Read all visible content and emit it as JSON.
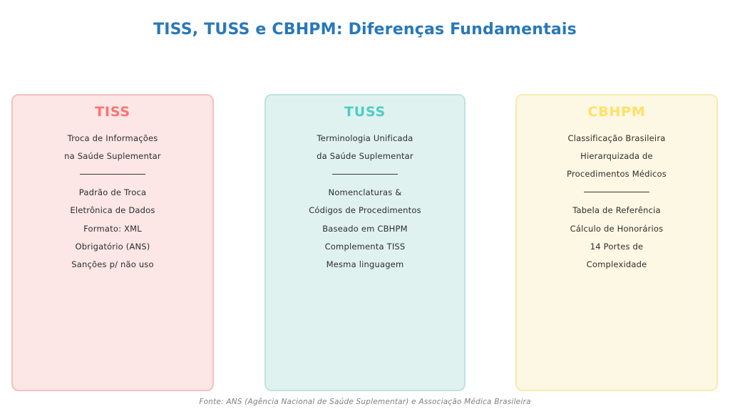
{
  "title": "TISS, TUSS e CBHPM: Diferenças Fundamentais",
  "footer": "Fonte: ANS (Agência Nacional de Saúde Suplementar) e Associação Médica Brasileira",
  "colors": {
    "title_text": "#2878b8",
    "body_text": "#2d2d2d",
    "footer_text": "#7f7f7f",
    "page_background": "#ffffff",
    "divider_line": "#3a3a3a"
  },
  "cards": [
    {
      "id": "tiss",
      "title": "TISS",
      "accent_color": "#fa7470",
      "background_color": "#fce6e6",
      "border_color": "#f5bfbf",
      "description_lines": [
        "Troca de Informações",
        "na Saúde Suplementar"
      ],
      "feature_lines": [
        "Padrão de Troca",
        "Eletrônica de Dados",
        "Formato: XML",
        "Obrigatório (ANS)",
        "Sanções p/ não uso"
      ]
    },
    {
      "id": "tuss",
      "title": "TUSS",
      "accent_color": "#4ecdc4",
      "background_color": "#e0f2f0",
      "border_color": "#bde4e0",
      "description_lines": [
        "Terminologia Unificada",
        "da Saúde Suplementar"
      ],
      "feature_lines": [
        "Nomenclaturas &",
        "Códigos de Procedimentos",
        "Baseado em CBHPM",
        "Complementa TISS",
        "Mesma linguagem"
      ]
    },
    {
      "id": "cbhpm",
      "title": "CBHPM",
      "accent_color": "#ffe069",
      "background_color": "#fdf8e3",
      "border_color": "#f8eab0",
      "description_lines": [
        "Classificação Brasileira",
        "Hierarquizada de",
        "Procedimentos Médicos"
      ],
      "feature_lines": [
        "Tabela de Referência",
        "Cálculo de Honorários",
        "14 Portes de",
        "Complexidade"
      ]
    }
  ]
}
